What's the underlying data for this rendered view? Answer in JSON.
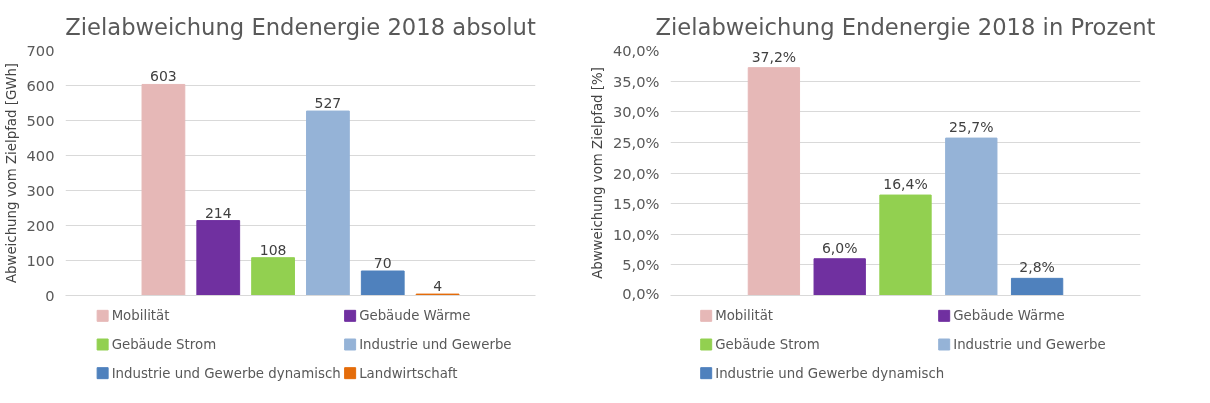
{
  "chart_data": [
    {
      "type": "bar",
      "title": "Zielabweichung Endenergie 2018 absolut",
      "ylabel": "Abweichung vom Zielpfad [GWh]",
      "categories": [
        null
      ],
      "ylim": [
        0,
        700
      ],
      "yticks": [
        0,
        100,
        200,
        300,
        400,
        500,
        600,
        700
      ],
      "grid": "y",
      "legend": "bottom",
      "data_labels": true,
      "series": [
        {
          "name": "Mobilität",
          "color": "#e6b8b7",
          "values": [
            603
          ]
        },
        {
          "name": "Gebäude Wärme",
          "color": "#7030a0",
          "values": [
            214
          ]
        },
        {
          "name": "Gebäude Strom",
          "color": "#92d050",
          "values": [
            108
          ]
        },
        {
          "name": "Industrie und Gewerbe",
          "color": "#95b3d7",
          "values": [
            527
          ]
        },
        {
          "name": "Industrie und Gewerbe dynamisch",
          "color": "#4f81bd",
          "values": [
            70
          ]
        },
        {
          "name": "Landwirtschaft",
          "color": "#e46c0a",
          "values": [
            4
          ]
        }
      ]
    },
    {
      "type": "bar",
      "title": "Zielabweichung Endenergie 2018 in Prozent",
      "ylabel": "Abwweichung vom Zielpfad [%]",
      "categories": [
        null
      ],
      "ylim": [
        0,
        40
      ],
      "yticks": [
        {
          "value": 0,
          "label": "0,0%"
        },
        {
          "value": 5,
          "label": "5,0%"
        },
        {
          "value": 10,
          "label": "10,0%"
        },
        {
          "value": 15,
          "label": "15,0%"
        },
        {
          "value": 20,
          "label": "20,0%"
        },
        {
          "value": 25,
          "label": "25,0%"
        },
        {
          "value": 30,
          "label": "30,0%"
        },
        {
          "value": 35,
          "label": "35,0%"
        },
        {
          "value": 40,
          "label": "40,0%"
        }
      ],
      "grid": "y",
      "legend": "bottom",
      "series": [
        {
          "name": "Mobilität",
          "color": "#e6b8b7",
          "values": [
            37.2
          ],
          "value_labels": [
            "37,2%"
          ]
        },
        {
          "name": "Gebäude Wärme",
          "color": "#7030a0",
          "values": [
            6.0
          ],
          "value_labels": [
            "6,0%"
          ]
        },
        {
          "name": "Gebäude Strom",
          "color": "#92d050",
          "values": [
            16.4
          ],
          "value_labels": [
            "16,4%"
          ]
        },
        {
          "name": "Industrie und Gewerbe",
          "color": "#95b3d7",
          "values": [
            25.7
          ],
          "value_labels": [
            "25,7%"
          ]
        },
        {
          "name": "Industrie und Gewerbe dynamisch",
          "color": "#4f81bd",
          "values": [
            2.8
          ],
          "value_labels": [
            "2,8%"
          ]
        }
      ]
    }
  ]
}
